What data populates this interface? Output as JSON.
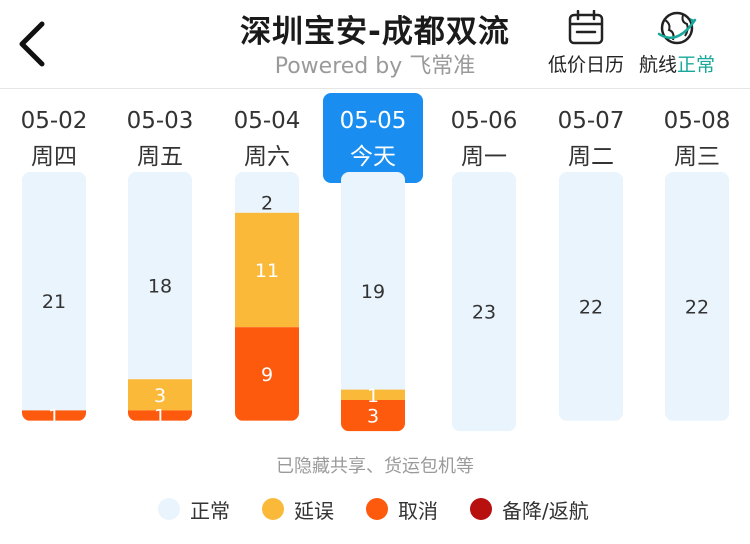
{
  "header": {
    "title": "深圳宝安-成都双流",
    "subtitle": "Powered by 飞常准",
    "calendar_label": "低价日历",
    "route_label": "航线",
    "route_status": "正常"
  },
  "days": [
    {
      "date": "05-02",
      "weekday": "周四",
      "selected": false
    },
    {
      "date": "05-03",
      "weekday": "周五",
      "selected": false
    },
    {
      "date": "05-04",
      "weekday": "周六",
      "selected": false
    },
    {
      "date": "05-05",
      "weekday": "今天",
      "selected": true
    },
    {
      "date": "05-06",
      "weekday": "周一",
      "selected": false
    },
    {
      "date": "05-07",
      "weekday": "周二",
      "selected": false
    },
    {
      "date": "05-08",
      "weekday": "周三",
      "selected": false
    }
  ],
  "chart_data": {
    "type": "bar",
    "stacked": true,
    "categories": [
      "05-02",
      "05-03",
      "05-04",
      "05-05",
      "05-06",
      "05-07",
      "05-08"
    ],
    "series": [
      {
        "name": "正常",
        "color": "#e9f4fd",
        "values": [
          21,
          18,
          2,
          19,
          23,
          22,
          22
        ]
      },
      {
        "name": "延误",
        "color": "#fbb93a",
        "values": [
          0,
          3,
          11,
          1,
          0,
          0,
          0
        ]
      },
      {
        "name": "取消",
        "color": "#fd5a0e",
        "values": [
          1,
          1,
          9,
          3,
          0,
          0,
          0
        ]
      },
      {
        "name": "备降/返航",
        "color": "#b80f0f",
        "values": [
          0,
          0,
          0,
          0,
          0,
          0,
          0
        ]
      }
    ]
  },
  "note": "已隐藏共享、货运包机等",
  "legend": [
    {
      "label": "正常",
      "color": "#e9f4fd"
    },
    {
      "label": "延误",
      "color": "#fbb93a"
    },
    {
      "label": "取消",
      "color": "#fd5a0e"
    },
    {
      "label": "备降/返航",
      "color": "#b80f0f"
    }
  ]
}
